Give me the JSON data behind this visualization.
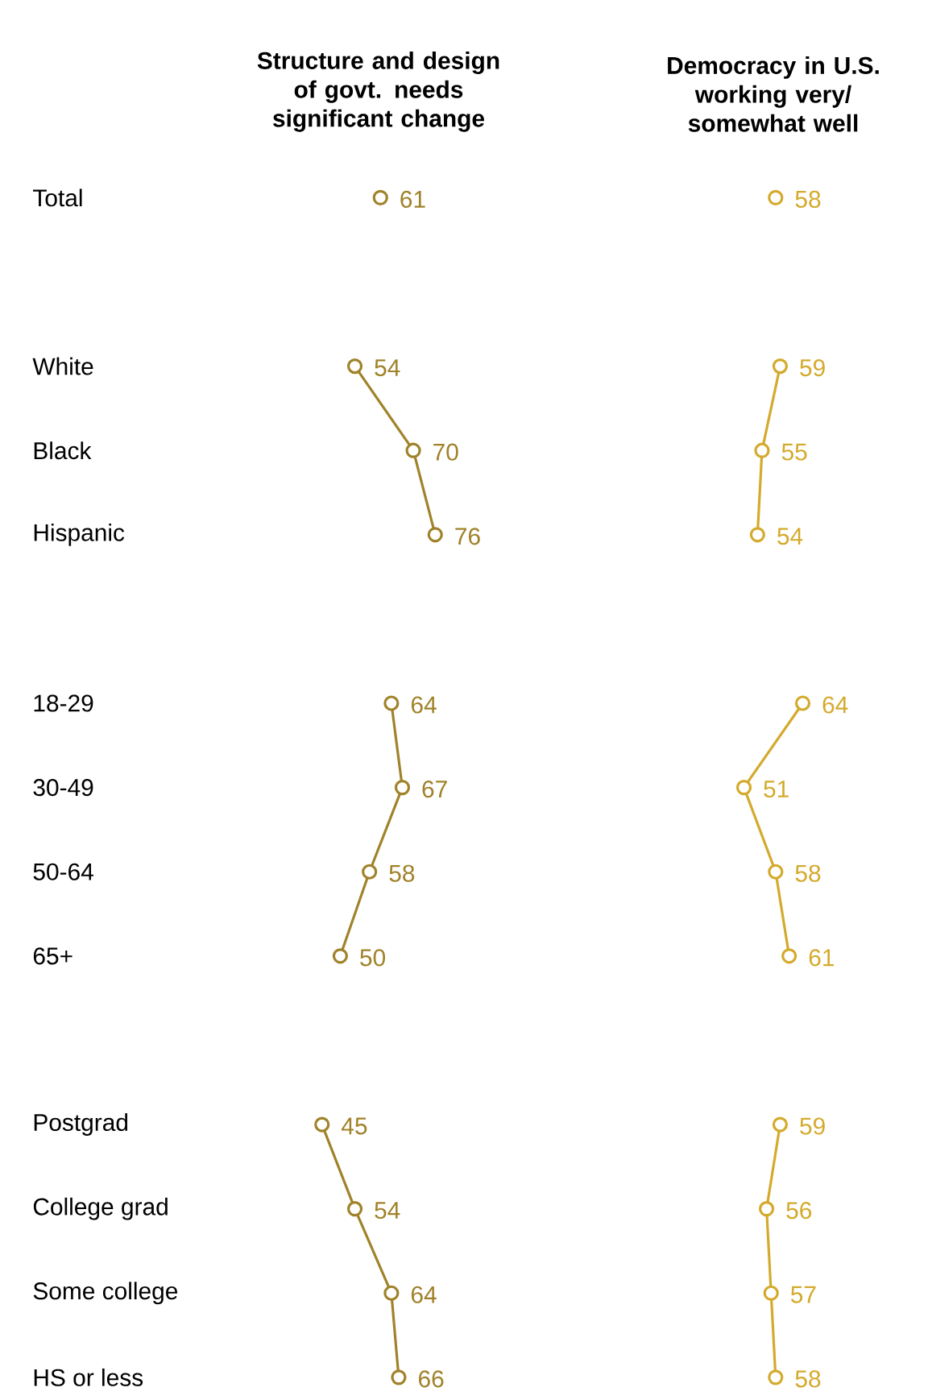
{
  "chart_data": [
    {
      "type": "line",
      "orientation": "horizontal",
      "title": "Structure and design of govt. needs significant change",
      "categories": [
        "Total",
        null,
        "White",
        "Black",
        "Hispanic",
        null,
        "18-29",
        "30-49",
        "50-64",
        "65+",
        null,
        "Postgrad",
        "College grad",
        "Some college",
        "HS or less"
      ],
      "series": [
        {
          "color": "#a0822a",
          "values": [
            61,
            null,
            54,
            70,
            76,
            null,
            64,
            67,
            58,
            50,
            null,
            45,
            54,
            64,
            66
          ]
        }
      ],
      "data_labels": true,
      "marker": "circle",
      "line_style": "solid",
      "tick_labels": "y"
    },
    {
      "type": "line",
      "orientation": "horizontal",
      "title": "Democracy in U.S. working very/ somewhat well",
      "series": [
        {
          "color": "#d4aa2c",
          "values": [
            58,
            null,
            59,
            55,
            54,
            null,
            64,
            51,
            58,
            61,
            null,
            59,
            56,
            57,
            58
          ]
        }
      ],
      "data_labels": true,
      "marker": "circle",
      "line_style": "solid",
      "tick_labels": false
    }
  ]
}
